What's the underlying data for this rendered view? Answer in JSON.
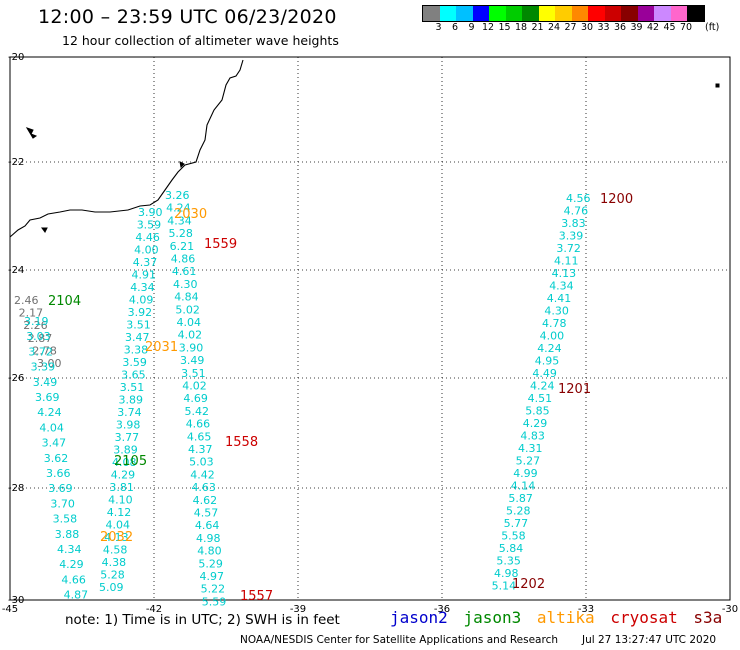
{
  "header": {
    "title": "12:00 – 23:59 UTC 06/23/2020",
    "subtitle": "12 hour collection of altimeter wave heights"
  },
  "colorbar": {
    "colors": [
      "#808080",
      "#00ffff",
      "#00c0ff",
      "#0000ff",
      "#00ff00",
      "#00cc00",
      "#008800",
      "#ffff00",
      "#ffcc00",
      "#ff8800",
      "#ff0000",
      "#cc0000",
      "#880000",
      "#990099",
      "#cc88ff",
      "#ff66cc",
      "#000000"
    ],
    "ticks": [
      "3",
      "6",
      "9",
      "12",
      "15",
      "18",
      "21",
      "24",
      "27",
      "30",
      "33",
      "36",
      "39",
      "42",
      "45",
      "70"
    ],
    "unit": "(ft)"
  },
  "axes": {
    "lat_labels": [
      "-20",
      "-22",
      "-24",
      "-26",
      "-28",
      "-30"
    ],
    "lon_labels": [
      "-45",
      "-42",
      "-39",
      "-36",
      "-33",
      "-30"
    ]
  },
  "colors": {
    "jason2": "#0000cc",
    "jason3": "#008800",
    "altika": "#ff9900",
    "cryosat": "#cc0000",
    "s3a": "#880000",
    "wave": "#00cccc",
    "gray": "#707070"
  },
  "tracks": {
    "time_labels": [
      {
        "text": "1200",
        "sat": "s3a"
      },
      {
        "text": "1201",
        "sat": "s3a"
      },
      {
        "text": "1202",
        "sat": "s3a"
      },
      {
        "text": "2030",
        "sat": "altika"
      },
      {
        "text": "2031",
        "sat": "altika"
      },
      {
        "text": "2032",
        "sat": "altika"
      },
      {
        "text": "1559",
        "sat": "cryosat"
      },
      {
        "text": "1558",
        "sat": "cryosat"
      },
      {
        "text": "1557",
        "sat": "cryosat"
      },
      {
        "text": "2104",
        "sat": "jason3"
      },
      {
        "text": "2105",
        "sat": "jason3"
      }
    ],
    "cryosat_values": [
      "3.26",
      "4.24",
      "4.34",
      "5.28",
      "6.21",
      "4.86",
      "4.61",
      "4.30",
      "4.84",
      "5.02",
      "4.04",
      "4.02",
      "3.90",
      "3.49",
      "3.51",
      "4.02",
      "4.69",
      "5.42",
      "4.66",
      "4.65",
      "4.37",
      "5.03",
      "4.42",
      "4.63",
      "4.62",
      "4.57",
      "4.64",
      "4.98",
      "4.80",
      "5.29",
      "4.97",
      "5.22",
      "5.59"
    ],
    "altika_values": [
      "3.90",
      "3.59",
      "4.46",
      "4.00",
      "4.37",
      "4.91",
      "4.34",
      "4.09",
      "3.92",
      "3.51",
      "3.47",
      "3.38",
      "3.59",
      "3.65",
      "3.51",
      "3.89",
      "3.74",
      "3.98",
      "3.77",
      "3.89",
      "4.08",
      "4.29",
      "3.81",
      "4.10",
      "4.12",
      "4.04",
      "4.13",
      "4.58",
      "4.38",
      "5.28",
      "5.09"
    ],
    "jason3_gray_values": [
      "2.46",
      "2.17",
      "2.26",
      "2.87",
      "2.78",
      "3.00"
    ],
    "jason3_values": [
      "3.19",
      "3.03",
      "3.72",
      "3.39",
      "3.49",
      "3.69",
      "4.24",
      "4.04",
      "3.47",
      "3.62",
      "3.66",
      "3.69",
      "3.70",
      "3.58",
      "3.88",
      "4.34",
      "4.29",
      "4.66",
      "4.87"
    ],
    "s3a_values": [
      "4.56",
      "4.76",
      "3.83",
      "3.39",
      "3.72",
      "4.11",
      "4.13",
      "4.34",
      "4.41",
      "4.30",
      "4.78",
      "4.00",
      "4.24",
      "4.95",
      "4.49",
      "4.24",
      "4.51",
      "5.85",
      "4.29",
      "4.83",
      "4.31",
      "5.27",
      "4.99",
      "4.14",
      "5.87",
      "5.28",
      "5.77",
      "5.58",
      "5.84",
      "5.35",
      "4.98",
      "5.14"
    ]
  },
  "note": "note: 1) Time is in UTC; 2) SWH is in feet",
  "legend": {
    "jason2": "jason2",
    "jason3": "jason3",
    "altika": "altika",
    "cryosat": "cryosat",
    "s3a": "s3a"
  },
  "footer": {
    "credit": "NOAA/NESDIS Center for Satellite Applications and Research",
    "timestamp": "Jul 27 13:27:47 UTC 2020"
  }
}
